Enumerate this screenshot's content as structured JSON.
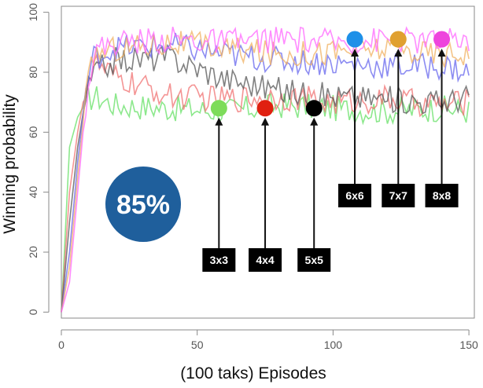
{
  "chart_data": {
    "type": "line",
    "title": "",
    "xlabel": "(100 taks) Episodes",
    "ylabel": "Winning probability",
    "xlim": [
      0,
      152
    ],
    "ylim": [
      -2,
      102
    ],
    "xticks": [
      "0",
      "50",
      "100",
      "150"
    ],
    "yticks": [
      "0",
      "20",
      "40",
      "60",
      "80",
      "100"
    ],
    "xtick_values": [
      0,
      50,
      100,
      150
    ],
    "ytick_values": [
      0,
      20,
      40,
      60,
      80,
      100
    ],
    "grid": false,
    "callout": "85%",
    "series": [
      {
        "name": "3x3",
        "color": "#7ddc5a",
        "line_color": "#66e066",
        "marker_value": 68,
        "marker_x": 58,
        "x": [
          0,
          3,
          6,
          9,
          12,
          20,
          40,
          60,
          80,
          100,
          120,
          140,
          150
        ],
        "values": [
          0,
          55,
          65,
          70,
          72,
          69,
          68,
          67,
          69,
          68,
          67,
          68,
          67
        ]
      },
      {
        "name": "4x4",
        "color": "#e02010",
        "line_color": "#f07070",
        "marker_value": 68,
        "marker_x": 75,
        "x": [
          0,
          3,
          6,
          9,
          12,
          20,
          40,
          60,
          80,
          100,
          120,
          140,
          150
        ],
        "values": [
          0,
          40,
          60,
          75,
          83,
          78,
          72,
          71,
          72,
          70,
          71,
          69,
          70
        ]
      },
      {
        "name": "5x5",
        "color": "#000000",
        "line_color": "#555555",
        "marker_value": 68,
        "marker_x": 93,
        "x": [
          0,
          3,
          6,
          9,
          12,
          20,
          40,
          60,
          80,
          100,
          120,
          140,
          150
        ],
        "values": [
          0,
          30,
          55,
          72,
          80,
          84,
          85,
          78,
          74,
          72,
          71,
          70,
          72
        ]
      },
      {
        "name": "6x6",
        "color": "#1e90e8",
        "line_color": "#6666ee",
        "marker_value": 91,
        "marker_x": 108,
        "x": [
          0,
          3,
          6,
          9,
          12,
          20,
          40,
          60,
          80,
          100,
          120,
          140,
          150
        ],
        "values": [
          0,
          20,
          50,
          74,
          85,
          88,
          89,
          86,
          84,
          83,
          82,
          82,
          80
        ]
      },
      {
        "name": "7x7",
        "color": "#e0a030",
        "line_color": "#f0b060",
        "marker_value": 91,
        "marker_x": 124,
        "x": [
          0,
          3,
          6,
          9,
          12,
          20,
          40,
          60,
          80,
          100,
          120,
          140,
          150
        ],
        "values": [
          0,
          15,
          45,
          72,
          86,
          88,
          90,
          88,
          86,
          87,
          88,
          86,
          87
        ]
      },
      {
        "name": "8x8",
        "color": "#ee44dd",
        "line_color": "#ff66ff",
        "marker_value": 91,
        "marker_x": 140,
        "x": [
          0,
          3,
          6,
          9,
          12,
          20,
          40,
          60,
          80,
          100,
          120,
          140,
          150
        ],
        "values": [
          0,
          10,
          40,
          70,
          87,
          90,
          91,
          90,
          91,
          90,
          91,
          90,
          91
        ]
      }
    ]
  }
}
